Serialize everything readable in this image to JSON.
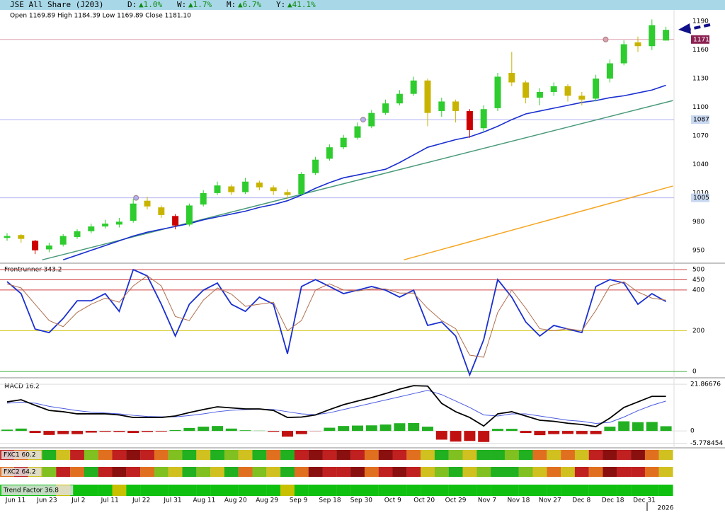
{
  "header": {
    "title": "JSE All Share (J203)",
    "changes": [
      {
        "label": "D:",
        "change": "▲1.0%"
      },
      {
        "label": "W:",
        "change": "▲1.7%"
      },
      {
        "label": "M:",
        "change": "▲6.7%"
      },
      {
        "label": "Y:",
        "change": "▲41.1%"
      }
    ],
    "ohlc_text": "Open 1169.89 High 1184.39 Low 1169.89 Close 1181.10"
  },
  "chart_data": [
    {
      "type": "candlestick",
      "ylim": [
        938,
        1202
      ],
      "yticks": [
        1190,
        1160,
        1130,
        1100,
        1070,
        1040,
        1010,
        980,
        950
      ],
      "open": [
        963,
        966,
        960,
        951,
        956,
        964,
        970,
        975,
        977,
        981,
        1002,
        995,
        986,
        977,
        998,
        1010,
        1017,
        1011,
        1021,
        1016,
        1011,
        1009,
        1031,
        1046,
        1058,
        1068,
        1080,
        1094,
        1104,
        1114,
        1128,
        1096,
        1106,
        1096,
        1078,
        1099,
        1136,
        1126,
        1110,
        1116,
        1122,
        1112,
        1109,
        1130,
        1146,
        1168,
        1164,
        1169.89
      ],
      "high": [
        968,
        967,
        961,
        958,
        967,
        972,
        978,
        982,
        984,
        1004,
        1006,
        997,
        988,
        999,
        1013,
        1022,
        1019,
        1026,
        1023,
        1018,
        1014,
        1032,
        1048,
        1061,
        1071,
        1084,
        1097,
        1108,
        1118,
        1132,
        1130,
        1110,
        1108,
        1098,
        1102,
        1136,
        1158,
        1128,
        1120,
        1126,
        1124,
        1116,
        1134,
        1150,
        1170,
        1174,
        1192,
        1184.39
      ],
      "low": [
        960,
        958,
        946,
        948,
        954,
        962,
        968,
        973,
        974,
        979,
        993,
        984,
        972,
        975,
        996,
        1008,
        1008,
        1009,
        1013,
        1008,
        1004,
        1007,
        1029,
        1044,
        1056,
        1066,
        1078,
        1092,
        1102,
        1112,
        1080,
        1090,
        1084,
        1068,
        1074,
        1096,
        1122,
        1104,
        1102,
        1112,
        1106,
        1102,
        1106,
        1126,
        1144,
        1158,
        1160,
        1169.89
      ],
      "close": [
        965,
        962,
        950,
        955,
        965,
        970,
        975,
        978,
        980,
        999,
        996,
        987,
        976,
        997,
        1010,
        1018,
        1011,
        1022,
        1016,
        1012,
        1008,
        1030,
        1045,
        1058,
        1068,
        1080,
        1094,
        1104,
        1114,
        1128,
        1094,
        1106,
        1096,
        1076,
        1098,
        1132,
        1126,
        1110,
        1116,
        1122,
        1112,
        1108,
        1130,
        1146,
        1166,
        1164,
        1186,
        1181.1
      ],
      "colors": [
        "#2ecc2e",
        "#c8b400",
        "#cc0000",
        "#2ecc2e",
        "#2ecc2e",
        "#2ecc2e",
        "#2ecc2e",
        "#2ecc2e",
        "#2ecc2e",
        "#2ecc2e",
        "#c8b400",
        "#c8b400",
        "#cc0000",
        "#2ecc2e",
        "#2ecc2e",
        "#2ecc2e",
        "#c8b400",
        "#2ecc2e",
        "#c8b400",
        "#c8b400",
        "#c8b400",
        "#2ecc2e",
        "#2ecc2e",
        "#2ecc2e",
        "#2ecc2e",
        "#2ecc2e",
        "#2ecc2e",
        "#2ecc2e",
        "#2ecc2e",
        "#2ecc2e",
        "#c8b400",
        "#2ecc2e",
        "#c8b400",
        "#cc0000",
        "#2ecc2e",
        "#2ecc2e",
        "#c8b400",
        "#c8b400",
        "#2ecc2e",
        "#2ecc2e",
        "#c8b400",
        "#c8b400",
        "#2ecc2e",
        "#2ecc2e",
        "#2ecc2e",
        "#c8b400",
        "#2ecc2e",
        "#2ecc2e"
      ],
      "ma": {
        "color": "#1a2fd0",
        "values": [
          null,
          null,
          null,
          null,
          940,
          945,
          950,
          955,
          960,
          965,
          969,
          972,
          975,
          978,
          982,
          985,
          988,
          991,
          995,
          998,
          1002,
          1008,
          1015,
          1021,
          1026,
          1029,
          1032,
          1035,
          1042,
          1050,
          1058,
          1062,
          1066,
          1069,
          1074,
          1080,
          1087,
          1093,
          1096,
          1099,
          1102,
          1105,
          1107,
          1110,
          1112,
          1115,
          1118,
          1123
        ]
      },
      "trendlines": [
        {
          "color": "#4a9a7a",
          "start": {
            "x": 2.5,
            "y": 940
          },
          "end": {
            "x": 47.5,
            "y": 1107
          }
        },
        {
          "color": "#f5a623",
          "start": {
            "x": 28.3,
            "y": 940
          },
          "end": {
            "x": 47.5,
            "y": 1017.4
          }
        }
      ],
      "levels": [
        {
          "value": 1171,
          "label": "1171",
          "color": "#e0a0b0",
          "box": "#8b2252",
          "from": 42.7
        },
        {
          "value": 1087,
          "label": "1087",
          "color": "#b0b0f0",
          "box": "#c8d8f0",
          "from": 25.4
        },
        {
          "value": 1005,
          "label": "1005",
          "color": "#b0b0f0",
          "box": "#c8d8f0",
          "from": 9.2
        }
      ],
      "x_labels": [
        "Jun 11",
        "Jun 23",
        "Jul 2",
        "Jul 11",
        "Jul 22",
        "Jul 31",
        "Aug 11",
        "Aug 20",
        "Aug 29",
        "Sep 9",
        "Sep 18",
        "Sep 30",
        "Oct 9",
        "Oct 20",
        "Oct 29",
        "Nov 7",
        "Nov 18",
        "Nov 27",
        "Dec 8",
        "Dec 18",
        "Dec 31"
      ],
      "year_label": "2026"
    },
    {
      "type": "line",
      "title": "Frontrunner 343.2",
      "ylim": [
        -24,
        528
      ],
      "yticks": [
        {
          "value": 500,
          "color": "#d04040"
        },
        {
          "value": 450,
          "color": "#d04040"
        },
        {
          "value": 400,
          "color": "#d04040"
        },
        {
          "value": 200,
          "color": "#d8c820"
        },
        {
          "value": 0,
          "color": "#40b040"
        }
      ],
      "series": [
        {
          "color": "#1a2fd0",
          "values": [
            441,
            382,
            208,
            191,
            260,
            347,
            347,
            382,
            295,
            500,
            469,
            330,
            174,
            330,
            399,
            434,
            330,
            295,
            365,
            330,
            87,
            417,
            451,
            417,
            382,
            399,
            417,
            399,
            365,
            399,
            226,
            243,
            174,
            -17,
            156,
            451,
            365,
            243,
            174,
            226,
            208,
            191,
            417,
            451,
            434,
            330,
            382,
            343.2
          ]
        },
        {
          "color": "#b07050",
          "values": [
            430,
            410,
            330,
            250,
            220,
            290,
            330,
            360,
            340,
            420,
            470,
            420,
            270,
            250,
            350,
            410,
            380,
            320,
            330,
            340,
            200,
            250,
            400,
            430,
            400,
            395,
            405,
            405,
            385,
            385,
            310,
            250,
            210,
            80,
            70,
            290,
            400,
            310,
            210,
            200,
            210,
            200,
            300,
            420,
            440,
            390,
            360,
            350
          ]
        }
      ]
    },
    {
      "type": "macd",
      "title": "MACD 16.2",
      "ylim": [
        -7.6,
        23.9
      ],
      "yticks": [
        21.86676,
        0,
        -5.778454
      ],
      "macd": {
        "color": "#000000",
        "values": [
          13.6,
          14.6,
          12,
          9.6,
          9,
          8,
          8,
          8,
          7.5,
          6.3,
          6.3,
          6.3,
          7,
          8.6,
          10,
          11.3,
          10.8,
          10.3,
          10.3,
          9.6,
          6.3,
          6.5,
          7.5,
          10,
          12.3,
          14,
          15.6,
          17.5,
          19.6,
          21.2,
          21,
          12.9,
          9,
          6.3,
          2.3,
          8,
          9,
          7,
          5,
          4.5,
          3.6,
          3,
          2,
          6,
          11,
          13.6,
          16.2,
          16.2
        ]
      },
      "signal": {
        "color": "#4a5ae0",
        "values": [
          13,
          13.5,
          13,
          11.5,
          10.5,
          9.5,
          8.8,
          8.4,
          8,
          7.3,
          6.8,
          6.6,
          6.6,
          7.2,
          8,
          9,
          9.7,
          10,
          10.2,
          10,
          9,
          8,
          7.6,
          8.5,
          10,
          11.5,
          13,
          14.5,
          16,
          17.5,
          19,
          17,
          14,
          11,
          7.5,
          7,
          8,
          8,
          7,
          6,
          5,
          4.5,
          3.5,
          4,
          6.5,
          9.5,
          12,
          14
        ]
      },
      "histogram": {
        "up_color": "#22b022",
        "down_color": "#c01010",
        "values": [
          0.6,
          1.1,
          -1,
          -1.9,
          -1.5,
          -1.5,
          -0.8,
          -0.4,
          -0.5,
          -1,
          -0.5,
          -0.3,
          0.4,
          1.4,
          2,
          2.3,
          1.1,
          0.3,
          0.1,
          -0.4,
          -2.7,
          -1.5,
          -0.1,
          1.5,
          2.3,
          2.5,
          2.6,
          3,
          3.6,
          3.7,
          2,
          -4.1,
          -5,
          -4.7,
          -5.2,
          1,
          1,
          -1,
          -2,
          -1.5,
          -1.4,
          -1.5,
          -1.5,
          2,
          4.5,
          4.1,
          4.2,
          2.2
        ]
      }
    },
    {
      "type": "heatstrip",
      "title": "FXC1 60.2",
      "colors": [
        "#c02020",
        "#e07020",
        "#d0c020",
        "#20b020",
        "#d0c020",
        "#c02020",
        "#80c020",
        "#e07020",
        "#c02020",
        "#8a1010",
        "#c02020",
        "#e07020",
        "#80c020",
        "#20b020",
        "#d0c020",
        "#20b020",
        "#80c020",
        "#d0c020",
        "#20b020",
        "#e07020",
        "#20b020",
        "#c02020",
        "#8a1010",
        "#c02020",
        "#8a1010",
        "#c02020",
        "#e07020",
        "#8a1010",
        "#c02020",
        "#e07020",
        "#d0c020",
        "#20b020",
        "#80c020",
        "#d0c020",
        "#20b020",
        "#20b020",
        "#80c020",
        "#20b020",
        "#e07020",
        "#d0c020",
        "#e07020",
        "#d0c020",
        "#c02020",
        "#8a1010",
        "#c02020",
        "#8a1010",
        "#e07020",
        "#d0c020"
      ]
    },
    {
      "type": "heatstrip",
      "title": "FXC2 64.2",
      "colors": [
        "#e07020",
        "#c02020",
        "#d0c020",
        "#80c020",
        "#c02020",
        "#e07020",
        "#20b020",
        "#c02020",
        "#8a1010",
        "#c02020",
        "#e07020",
        "#80c020",
        "#d0c020",
        "#20b020",
        "#80c020",
        "#d0c020",
        "#20b020",
        "#e07020",
        "#80c020",
        "#d0c020",
        "#20b020",
        "#e07020",
        "#8a1010",
        "#c02020",
        "#c02020",
        "#8a1010",
        "#e07020",
        "#c02020",
        "#8a1010",
        "#c02020",
        "#d0c020",
        "#80c020",
        "#20b020",
        "#d0c020",
        "#80c020",
        "#20b020",
        "#20b020",
        "#80c020",
        "#d0c020",
        "#e07020",
        "#d0c020",
        "#c02020",
        "#e07020",
        "#8a1010",
        "#c02020",
        "#c02020",
        "#e07020",
        "#d0c020"
      ]
    },
    {
      "type": "heatstrip",
      "title": "Trend Factor 36.8",
      "colors": [
        "#10c010",
        "#10c010",
        "#10c010",
        "#10c010",
        "#c8c000",
        "#10c010",
        "#10c010",
        "#10c010",
        "#c8c000",
        "#10c010",
        "#10c010",
        "#10c010",
        "#10c010",
        "#10c010",
        "#10c010",
        "#10c010",
        "#10c010",
        "#10c010",
        "#10c010",
        "#10c010",
        "#c8c000",
        "#10c010",
        "#10c010",
        "#10c010",
        "#10c010",
        "#10c010",
        "#10c010",
        "#10c010",
        "#10c010",
        "#10c010",
        "#10c010",
        "#10c010",
        "#10c010",
        "#10c010",
        "#10c010",
        "#10c010",
        "#10c010",
        "#10c010",
        "#10c010",
        "#10c010",
        "#10c010",
        "#10c010",
        "#10c010",
        "#10c010",
        "#10c010",
        "#10c010",
        "#10c010",
        "#10c010"
      ]
    }
  ]
}
